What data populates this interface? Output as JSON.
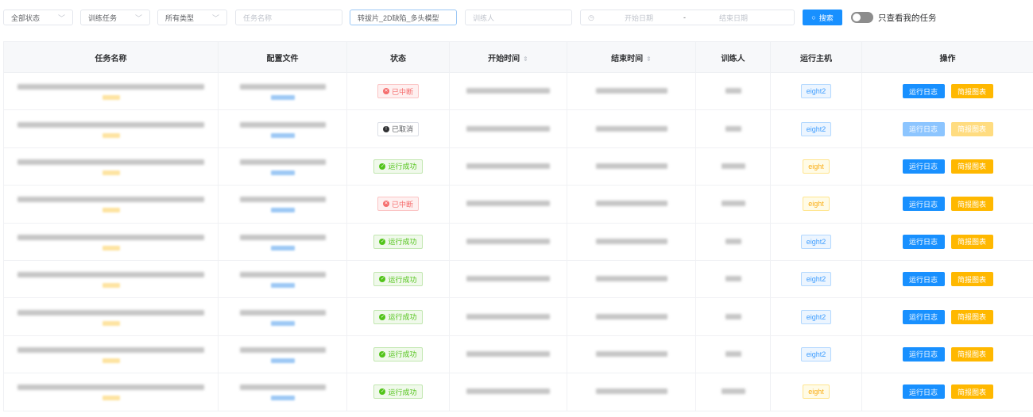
{
  "filters": {
    "status": "全部状态",
    "task_kind": "训练任务",
    "type": "所有类型",
    "task_name_placeholder": "任务名称",
    "search_value": "转拔片_2D缺陷_多头模型",
    "trainer_placeholder": "训练人",
    "start_date_placeholder": "开始日期",
    "date_sep": "-",
    "end_date_placeholder": "结束日期",
    "search_label": "搜索",
    "only_mine_label": "只查看我的任务",
    "only_mine_on": false
  },
  "table": {
    "columns": [
      "任务名称",
      "配置文件",
      "状态",
      "开始时间",
      "结束时间",
      "训练人",
      "运行主机",
      "操作"
    ],
    "rows": [
      {
        "status": "已中断",
        "status_kind": "err",
        "host": "eight2",
        "disabled": false
      },
      {
        "status": "已取消",
        "status_kind": "can",
        "host": "eight2",
        "disabled": true
      },
      {
        "status": "运行成功",
        "status_kind": "ok",
        "host": "eight",
        "disabled": false
      },
      {
        "status": "已中断",
        "status_kind": "err",
        "host": "eight",
        "disabled": false
      },
      {
        "status": "运行成功",
        "status_kind": "ok",
        "host": "eight2",
        "disabled": false
      },
      {
        "status": "运行成功",
        "status_kind": "ok",
        "host": "eight2",
        "disabled": false
      },
      {
        "status": "运行成功",
        "status_kind": "ok",
        "host": "eight2",
        "disabled": false
      },
      {
        "status": "运行成功",
        "status_kind": "ok",
        "host": "eight2",
        "disabled": false
      },
      {
        "status": "运行成功",
        "status_kind": "ok",
        "host": "eight",
        "disabled": false
      }
    ],
    "actions": {
      "log": "运行日志",
      "report": "简报图表"
    }
  },
  "colors": {
    "primary": "#1890ff",
    "warning": "#ffb800",
    "success": "#52c41a",
    "danger": "#f56c6c"
  }
}
